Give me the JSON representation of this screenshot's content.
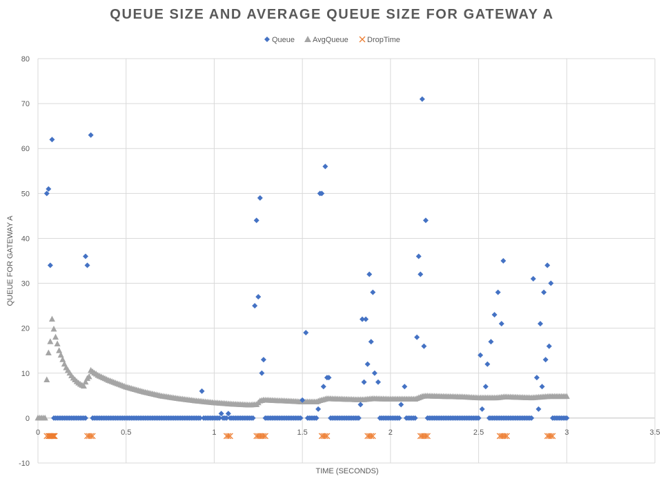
{
  "chart_data": {
    "type": "scatter",
    "title": "QUEUE SIZE AND AVERAGE QUEUE SIZE FOR GATEWAY A",
    "xlabel": "TIME (SECONDS)",
    "ylabel": "QUEUE FOR GATEWAY A",
    "xlim": [
      0,
      3.5
    ],
    "ylim": [
      -10,
      80
    ],
    "x_ticks": [
      "0",
      "0.5",
      "1",
      "1.5",
      "2",
      "2.5",
      "3",
      "3.5"
    ],
    "y_ticks": [
      "-10",
      "0",
      "10",
      "20",
      "30",
      "40",
      "50",
      "60",
      "70",
      "80"
    ],
    "grid": true,
    "legend_position": "top",
    "series": [
      {
        "name": "Queue",
        "marker": "diamond",
        "color": "#4472C4",
        "points": [
          [
            0.05,
            50
          ],
          [
            0.06,
            51
          ],
          [
            0.07,
            34
          ],
          [
            0.08,
            62
          ],
          [
            0.27,
            36
          ],
          [
            0.28,
            34
          ],
          [
            0.3,
            63
          ],
          [
            0.93,
            6
          ],
          [
            1.04,
            1
          ],
          [
            1.08,
            1
          ],
          [
            1.23,
            25
          ],
          [
            1.24,
            44
          ],
          [
            1.25,
            27
          ],
          [
            1.26,
            49
          ],
          [
            1.27,
            10
          ],
          [
            1.28,
            13
          ],
          [
            1.5,
            4
          ],
          [
            1.52,
            19
          ],
          [
            1.59,
            2
          ],
          [
            1.6,
            50
          ],
          [
            1.61,
            50
          ],
          [
            1.62,
            7
          ],
          [
            1.63,
            56
          ],
          [
            1.64,
            9
          ],
          [
            1.65,
            9
          ],
          [
            1.83,
            3
          ],
          [
            1.84,
            22
          ],
          [
            1.85,
            8
          ],
          [
            1.86,
            22
          ],
          [
            1.87,
            12
          ],
          [
            1.88,
            32
          ],
          [
            1.89,
            17
          ],
          [
            1.9,
            28
          ],
          [
            1.91,
            10
          ],
          [
            1.93,
            8
          ],
          [
            2.06,
            3
          ],
          [
            2.08,
            7
          ],
          [
            2.15,
            18
          ],
          [
            2.16,
            36
          ],
          [
            2.17,
            32
          ],
          [
            2.18,
            71
          ],
          [
            2.19,
            16
          ],
          [
            2.2,
            44
          ],
          [
            2.51,
            14
          ],
          [
            2.52,
            2
          ],
          [
            2.54,
            7
          ],
          [
            2.55,
            12
          ],
          [
            2.57,
            17
          ],
          [
            2.59,
            23
          ],
          [
            2.61,
            28
          ],
          [
            2.63,
            21
          ],
          [
            2.64,
            35
          ],
          [
            2.81,
            31
          ],
          [
            2.83,
            9
          ],
          [
            2.84,
            2
          ],
          [
            2.85,
            21
          ],
          [
            2.86,
            7
          ],
          [
            2.87,
            28
          ],
          [
            2.88,
            13
          ],
          [
            2.89,
            34
          ],
          [
            2.9,
            16
          ],
          [
            2.91,
            30
          ]
        ],
        "zero_runs": [
          [
            0.09,
            0.27
          ],
          [
            0.31,
            0.92
          ],
          [
            0.94,
            1.03
          ],
          [
            1.05,
            1.07
          ],
          [
            1.09,
            1.22
          ],
          [
            1.29,
            1.49
          ],
          [
            1.53,
            1.58
          ],
          [
            1.66,
            1.82
          ],
          [
            1.94,
            2.05
          ],
          [
            2.09,
            2.14
          ],
          [
            2.21,
            2.5
          ],
          [
            2.56,
            2.8
          ],
          [
            2.92,
            3.0
          ]
        ],
        "zero_step": 0.01
      },
      {
        "name": "AvgQueue",
        "marker": "triangle",
        "color": "#A5A5A5",
        "points": [
          [
            0.0,
            0
          ],
          [
            0.01,
            0
          ],
          [
            0.02,
            0
          ],
          [
            0.03,
            0
          ],
          [
            0.04,
            0
          ],
          [
            0.05,
            8.5
          ],
          [
            0.06,
            14.5
          ],
          [
            0.07,
            17
          ],
          [
            0.08,
            22
          ],
          [
            0.09,
            19.8
          ],
          [
            0.1,
            18
          ],
          [
            0.11,
            16.5
          ],
          [
            0.12,
            15
          ],
          [
            0.13,
            14
          ],
          [
            0.14,
            13
          ],
          [
            0.15,
            12
          ],
          [
            0.16,
            11.2
          ],
          [
            0.17,
            10.6
          ],
          [
            0.18,
            10
          ],
          [
            0.19,
            9.4
          ],
          [
            0.2,
            8.9
          ],
          [
            0.21,
            8.5
          ],
          [
            0.22,
            8.1
          ],
          [
            0.23,
            7.8
          ],
          [
            0.24,
            7.5
          ],
          [
            0.25,
            7.3
          ],
          [
            0.26,
            7.1
          ],
          [
            0.27,
            8.0
          ],
          [
            0.28,
            8.8
          ],
          [
            0.29,
            9.2
          ],
          [
            0.3,
            10.6
          ],
          [
            0.31,
            10.3
          ],
          [
            0.32,
            10.0
          ],
          [
            0.33,
            9.8
          ],
          [
            0.34,
            9.5
          ],
          [
            0.4,
            8.4
          ],
          [
            0.5,
            6.9
          ],
          [
            0.6,
            5.8
          ],
          [
            0.7,
            4.9
          ],
          [
            0.8,
            4.3
          ],
          [
            0.9,
            3.8
          ],
          [
            1.0,
            3.4
          ],
          [
            1.1,
            3.1
          ],
          [
            1.2,
            2.9
          ],
          [
            1.24,
            3.0
          ],
          [
            1.26,
            3.8
          ],
          [
            1.28,
            4.0
          ],
          [
            1.4,
            3.8
          ],
          [
            1.5,
            3.6
          ],
          [
            1.58,
            3.6
          ],
          [
            1.6,
            3.9
          ],
          [
            1.64,
            4.3
          ],
          [
            1.8,
            4.1
          ],
          [
            1.85,
            4.1
          ],
          [
            1.9,
            4.3
          ],
          [
            2.0,
            4.2
          ],
          [
            2.14,
            4.2
          ],
          [
            2.18,
            4.8
          ],
          [
            2.2,
            4.9
          ],
          [
            2.4,
            4.7
          ],
          [
            2.5,
            4.5
          ],
          [
            2.6,
            4.5
          ],
          [
            2.65,
            4.7
          ],
          [
            2.8,
            4.5
          ],
          [
            2.9,
            4.8
          ],
          [
            3.0,
            4.8
          ]
        ]
      },
      {
        "name": "DropTime",
        "marker": "x",
        "color": "#ED7D31",
        "y": -4,
        "x": [
          0.05,
          0.06,
          0.065,
          0.07,
          0.075,
          0.08,
          0.085,
          0.09,
          0.095,
          0.28,
          0.29,
          0.3,
          0.31,
          1.07,
          1.08,
          1.09,
          1.24,
          1.25,
          1.26,
          1.27,
          1.28,
          1.29,
          1.61,
          1.62,
          1.63,
          1.64,
          1.87,
          1.88,
          1.89,
          1.9,
          2.17,
          2.18,
          2.19,
          2.2,
          2.21,
          2.62,
          2.63,
          2.64,
          2.65,
          2.66,
          2.89,
          2.9,
          2.91,
          2.92
        ]
      }
    ]
  }
}
